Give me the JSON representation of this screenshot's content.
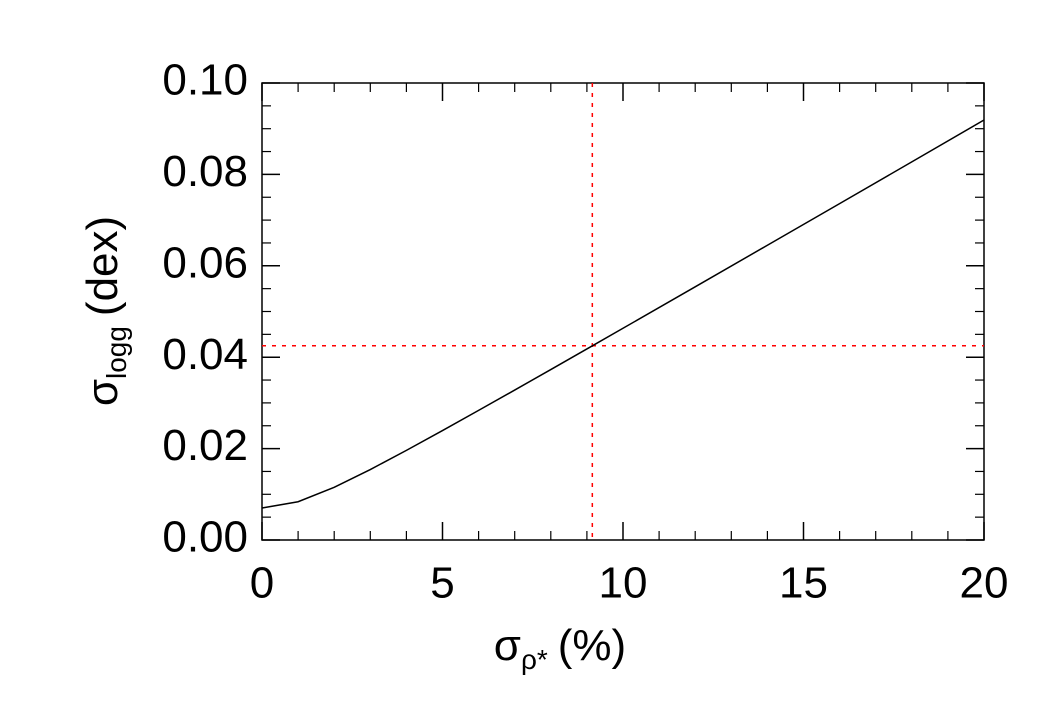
{
  "chart_data": {
    "type": "line",
    "x": [
      0,
      1,
      2,
      3,
      4,
      5,
      6,
      7,
      8,
      9,
      10,
      12,
      14,
      16,
      18,
      20
    ],
    "series": [
      {
        "color": "#000000",
        "values": [
          0.007,
          0.00837,
          0.01153,
          0.01542,
          0.01961,
          0.02395,
          0.02836,
          0.03281,
          0.0373,
          0.04181,
          0.04633,
          0.0554,
          0.0645,
          0.07361,
          0.08274,
          0.0919
        ]
      }
    ],
    "xlim": [
      0,
      20
    ],
    "xticks": [
      0,
      5,
      10,
      15,
      20
    ],
    "ylim": [
      0,
      0.1
    ],
    "yticks": [
      {
        "value": 0,
        "label": "0.00"
      },
      {
        "value": 0.02,
        "label": "0.02"
      },
      {
        "value": 0.04,
        "label": "0.04"
      },
      {
        "value": 0.06,
        "label": "0.06"
      },
      {
        "value": 0.08,
        "label": "0.08"
      },
      {
        "value": 0.1,
        "label": "0.10"
      }
    ],
    "xlabel": {
      "symbol": "σ",
      "subscript": "ρ*",
      "unit": "(%)"
    },
    "ylabel": {
      "symbol": "σ",
      "subscript": "logg",
      "unit": "(dex)"
    },
    "reference_lines": {
      "x": 9.15,
      "y": 0.0425,
      "color": "#ff0000"
    }
  }
}
